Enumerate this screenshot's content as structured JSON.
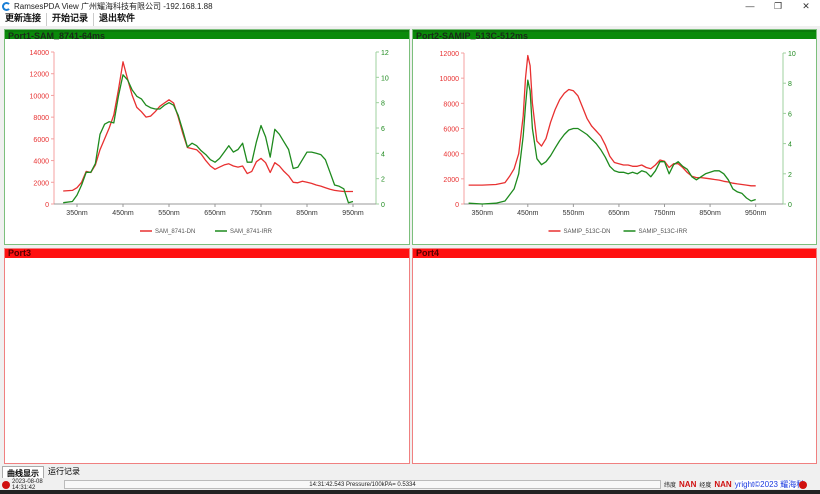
{
  "window": {
    "title": "RamsesPDA View 广州耀海科技有限公司 -192.168.1.88",
    "controls": [
      "—",
      "❐",
      "✕"
    ]
  },
  "menu": [
    "更新连接",
    "开始记录",
    "退出软件"
  ],
  "panels": [
    {
      "title": "Port1-SAM_8741-64ms",
      "status_color": "#0a8a0a"
    },
    {
      "title": "Port2-SAMIP_513C-512ms",
      "status_color": "#0a8a0a"
    },
    {
      "title": "Port3",
      "status_color": "#ff1010"
    },
    {
      "title": "Port4",
      "status_color": "#ff1010"
    }
  ],
  "chart_data": [
    {
      "type": "line",
      "x_ticks": [
        "350nm",
        "450nm",
        "550nm",
        "650nm",
        "750nm",
        "850nm",
        "950nm"
      ],
      "xlim": [
        300,
        1000
      ],
      "ylim_left": [
        0,
        14000
      ],
      "yticks_left": [
        "0",
        "2000",
        "4000",
        "6000",
        "8000",
        "10000",
        "12000",
        "14000"
      ],
      "ylim_right": [
        0,
        12
      ],
      "yticks_right": [
        "0",
        "2",
        "4",
        "6",
        "8",
        "10",
        "12"
      ],
      "grid": false,
      "legend": "bottom",
      "x": [
        320,
        340,
        350,
        360,
        370,
        380,
        390,
        400,
        410,
        420,
        430,
        440,
        450,
        460,
        470,
        480,
        490,
        500,
        510,
        520,
        530,
        540,
        550,
        560,
        570,
        580,
        590,
        600,
        610,
        620,
        630,
        640,
        650,
        660,
        670,
        680,
        690,
        700,
        710,
        720,
        730,
        740,
        750,
        760,
        770,
        780,
        790,
        800,
        810,
        820,
        830,
        840,
        850,
        860,
        870,
        880,
        890,
        900,
        910,
        920,
        930,
        940,
        950
      ],
      "series": [
        {
          "name": "SAM_8741-DN",
          "axis": "left",
          "color": "#e83030",
          "values": [
            1200,
            1250,
            1500,
            2000,
            3000,
            2900,
            3600,
            5000,
            6000,
            7000,
            8200,
            10500,
            13100,
            11500,
            10000,
            8900,
            8500,
            8000,
            8100,
            8500,
            9000,
            9300,
            9600,
            9300,
            8000,
            6500,
            5200,
            5100,
            5000,
            4600,
            4000,
            3500,
            3200,
            3400,
            3600,
            3700,
            3500,
            3400,
            3500,
            2800,
            3000,
            3900,
            4200,
            3800,
            2900,
            3800,
            3500,
            3000,
            2600,
            2000,
            1950,
            2100,
            2000,
            1900,
            1750,
            1650,
            1500,
            1350,
            1250,
            1200,
            1150,
            1150,
            1150
          ]
        },
        {
          "name": "SAM_8741-IRR",
          "axis": "right",
          "color": "#1e8a1e",
          "values": [
            0.1,
            0.2,
            0.7,
            1.5,
            2.5,
            2.5,
            3.2,
            5.5,
            6.3,
            6.5,
            6.4,
            8.5,
            10.2,
            9.8,
            9,
            8.5,
            8.3,
            7.8,
            7.6,
            7.5,
            7.5,
            7.8,
            8.0,
            7.8,
            7,
            5.8,
            4.5,
            4.8,
            4.6,
            4.2,
            3.9,
            3.5,
            3.3,
            3.6,
            4.1,
            4.6,
            4.1,
            4.3,
            4.8,
            3.3,
            3.3,
            4.9,
            6.2,
            5.3,
            3.7,
            5.9,
            5.5,
            4.9,
            4.3,
            2.8,
            2.9,
            3.5,
            4.1,
            4.1,
            4.0,
            3.9,
            3.5,
            2.5,
            1.5,
            1.4,
            1.2,
            0.1,
            0.2
          ]
        }
      ]
    },
    {
      "type": "line",
      "x_ticks": [
        "350nm",
        "450nm",
        "550nm",
        "650nm",
        "750nm",
        "850nm",
        "950nm"
      ],
      "xlim": [
        310,
        1010
      ],
      "ylim_left": [
        0,
        12000
      ],
      "yticks_left": [
        "0",
        "2000",
        "4000",
        "6000",
        "8000",
        "10000",
        "12000"
      ],
      "ylim_right": [
        0,
        10
      ],
      "yticks_right": [
        "0",
        "2",
        "4",
        "6",
        "8",
        "10"
      ],
      "grid": false,
      "legend": "bottom",
      "x": [
        320,
        350,
        380,
        400,
        410,
        420,
        430,
        440,
        445,
        450,
        455,
        460,
        470,
        480,
        490,
        500,
        510,
        520,
        530,
        540,
        550,
        560,
        570,
        580,
        590,
        600,
        610,
        620,
        630,
        640,
        650,
        660,
        670,
        680,
        690,
        700,
        710,
        720,
        730,
        740,
        750,
        760,
        770,
        780,
        790,
        800,
        810,
        820,
        830,
        840,
        850,
        860,
        870,
        880,
        890,
        900,
        910,
        920,
        930,
        940,
        950
      ],
      "series": [
        {
          "name": "SAMIP_513C-DN",
          "axis": "left",
          "color": "#e83030",
          "values": [
            1500,
            1500,
            1550,
            1700,
            2200,
            2800,
            4000,
            7000,
            10000,
            11800,
            11000,
            8000,
            5000,
            4600,
            5200,
            6500,
            7500,
            8300,
            8800,
            9100,
            9000,
            8600,
            7700,
            6800,
            6200,
            5800,
            5400,
            4700,
            3800,
            3300,
            3200,
            3100,
            3100,
            3000,
            3000,
            3100,
            2900,
            2800,
            3100,
            3500,
            3400,
            2900,
            3200,
            3200,
            2900,
            2500,
            2200,
            2100,
            2100,
            2050,
            2000,
            1950,
            1900,
            1800,
            1750,
            1650,
            1600,
            1550,
            1500,
            1450,
            1450
          ]
        },
        {
          "name": "SAMIP_513C-IRR",
          "axis": "right",
          "color": "#1e8a1e",
          "values": [
            0.05,
            0,
            0.05,
            0.2,
            0.6,
            1.0,
            2,
            4.5,
            6.5,
            8.2,
            7.5,
            5,
            3,
            2.6,
            2.8,
            3.2,
            3.7,
            4.2,
            4.6,
            4.9,
            5.0,
            5.0,
            4.8,
            4.6,
            4.3,
            4.0,
            3.6,
            3.1,
            2.5,
            2.2,
            2.1,
            2.1,
            2.0,
            2.1,
            2.0,
            2.2,
            2.1,
            1.8,
            2.2,
            2.8,
            2.8,
            2.0,
            2.6,
            2.8,
            2.5,
            2.3,
            1.8,
            1.6,
            1.8,
            2.0,
            2.1,
            2.2,
            2.2,
            2.0,
            1.6,
            1.0,
            0.8,
            0.7,
            0.4,
            0.2,
            0.3
          ]
        }
      ]
    }
  ],
  "tabs": [
    "曲线显示",
    "运行记录"
  ],
  "status": {
    "datetime": "2023-08-08 14:31:42",
    "message": "14:31:42.543 Pressure/100kPA= 0.5334",
    "lat_label": "纬度",
    "lat_value": "NAN",
    "lon_label": "经度",
    "lon_value": "NAN",
    "copyright": "yright©2023 耀海科"
  }
}
